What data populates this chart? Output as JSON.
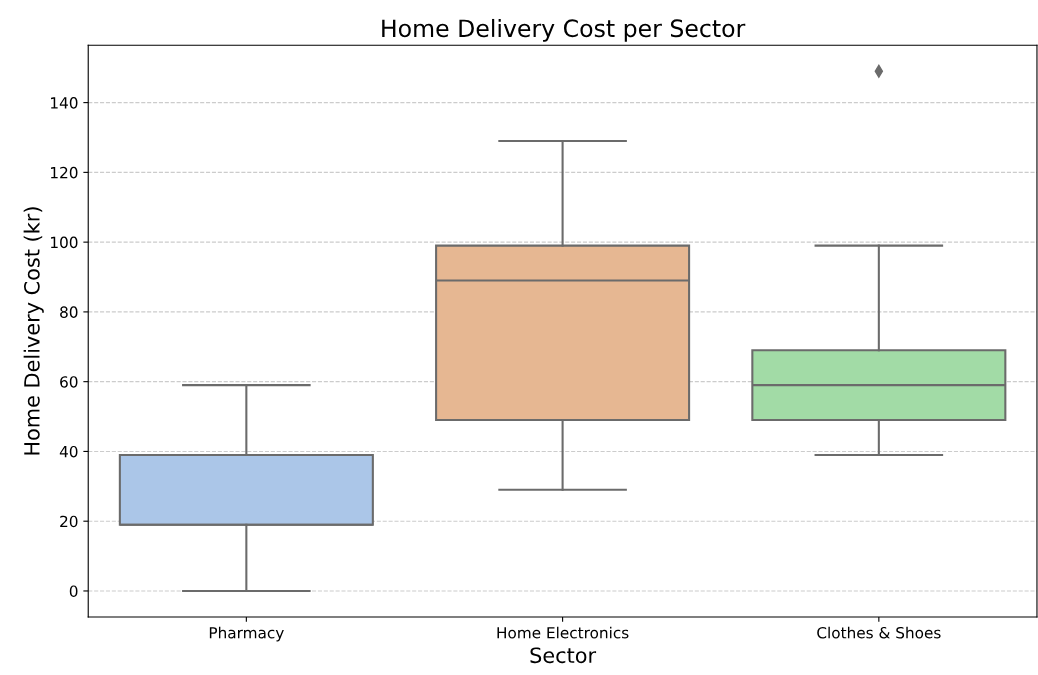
{
  "chart_data": {
    "type": "box",
    "title": "Home Delivery Cost per Sector",
    "xlabel": "Sector",
    "ylabel": "Home Delivery Cost (kr)",
    "categories": [
      "Pharmacy",
      "Home Electronics",
      "Clothes & Shoes"
    ],
    "boxes": [
      {
        "low": 0,
        "q1": 19,
        "median": 19,
        "q3": 39,
        "high": 59
      },
      {
        "low": 29,
        "q1": 49,
        "median": 89,
        "q3": 99,
        "high": 129
      },
      {
        "low": 39,
        "q1": 49,
        "median": 59,
        "q3": 69,
        "high": 99,
        "outliers": [
          149
        ]
      }
    ],
    "colors": [
      "#abc6e8",
      "#e6b792",
      "#a2dba6"
    ],
    "ylim": [
      -7.45,
      156.45
    ],
    "yticks": [
      0,
      20,
      40,
      60,
      80,
      100,
      120,
      140
    ],
    "grid": "y",
    "marker": "diamond"
  }
}
